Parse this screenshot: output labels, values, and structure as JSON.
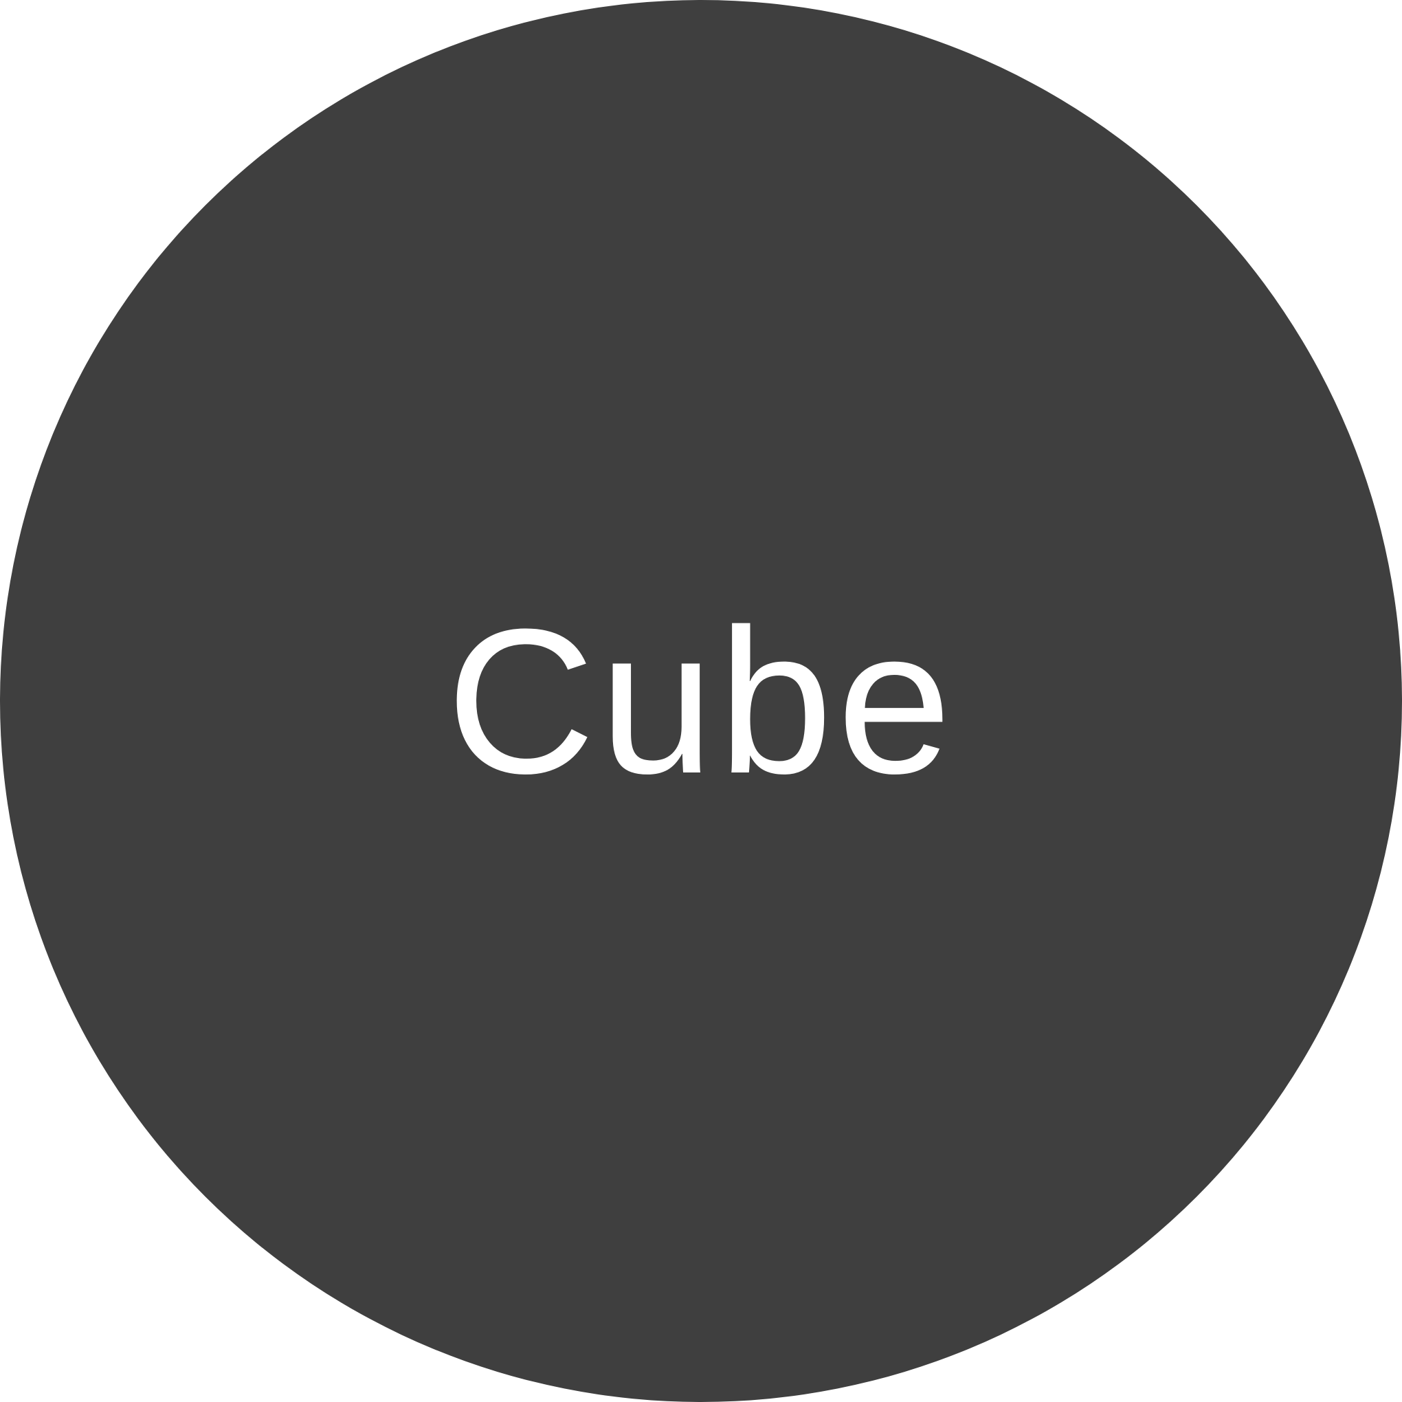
{
  "badge": {
    "label": "Cube",
    "background_color": "#3f3f3f",
    "text_color": "#ffffff"
  }
}
